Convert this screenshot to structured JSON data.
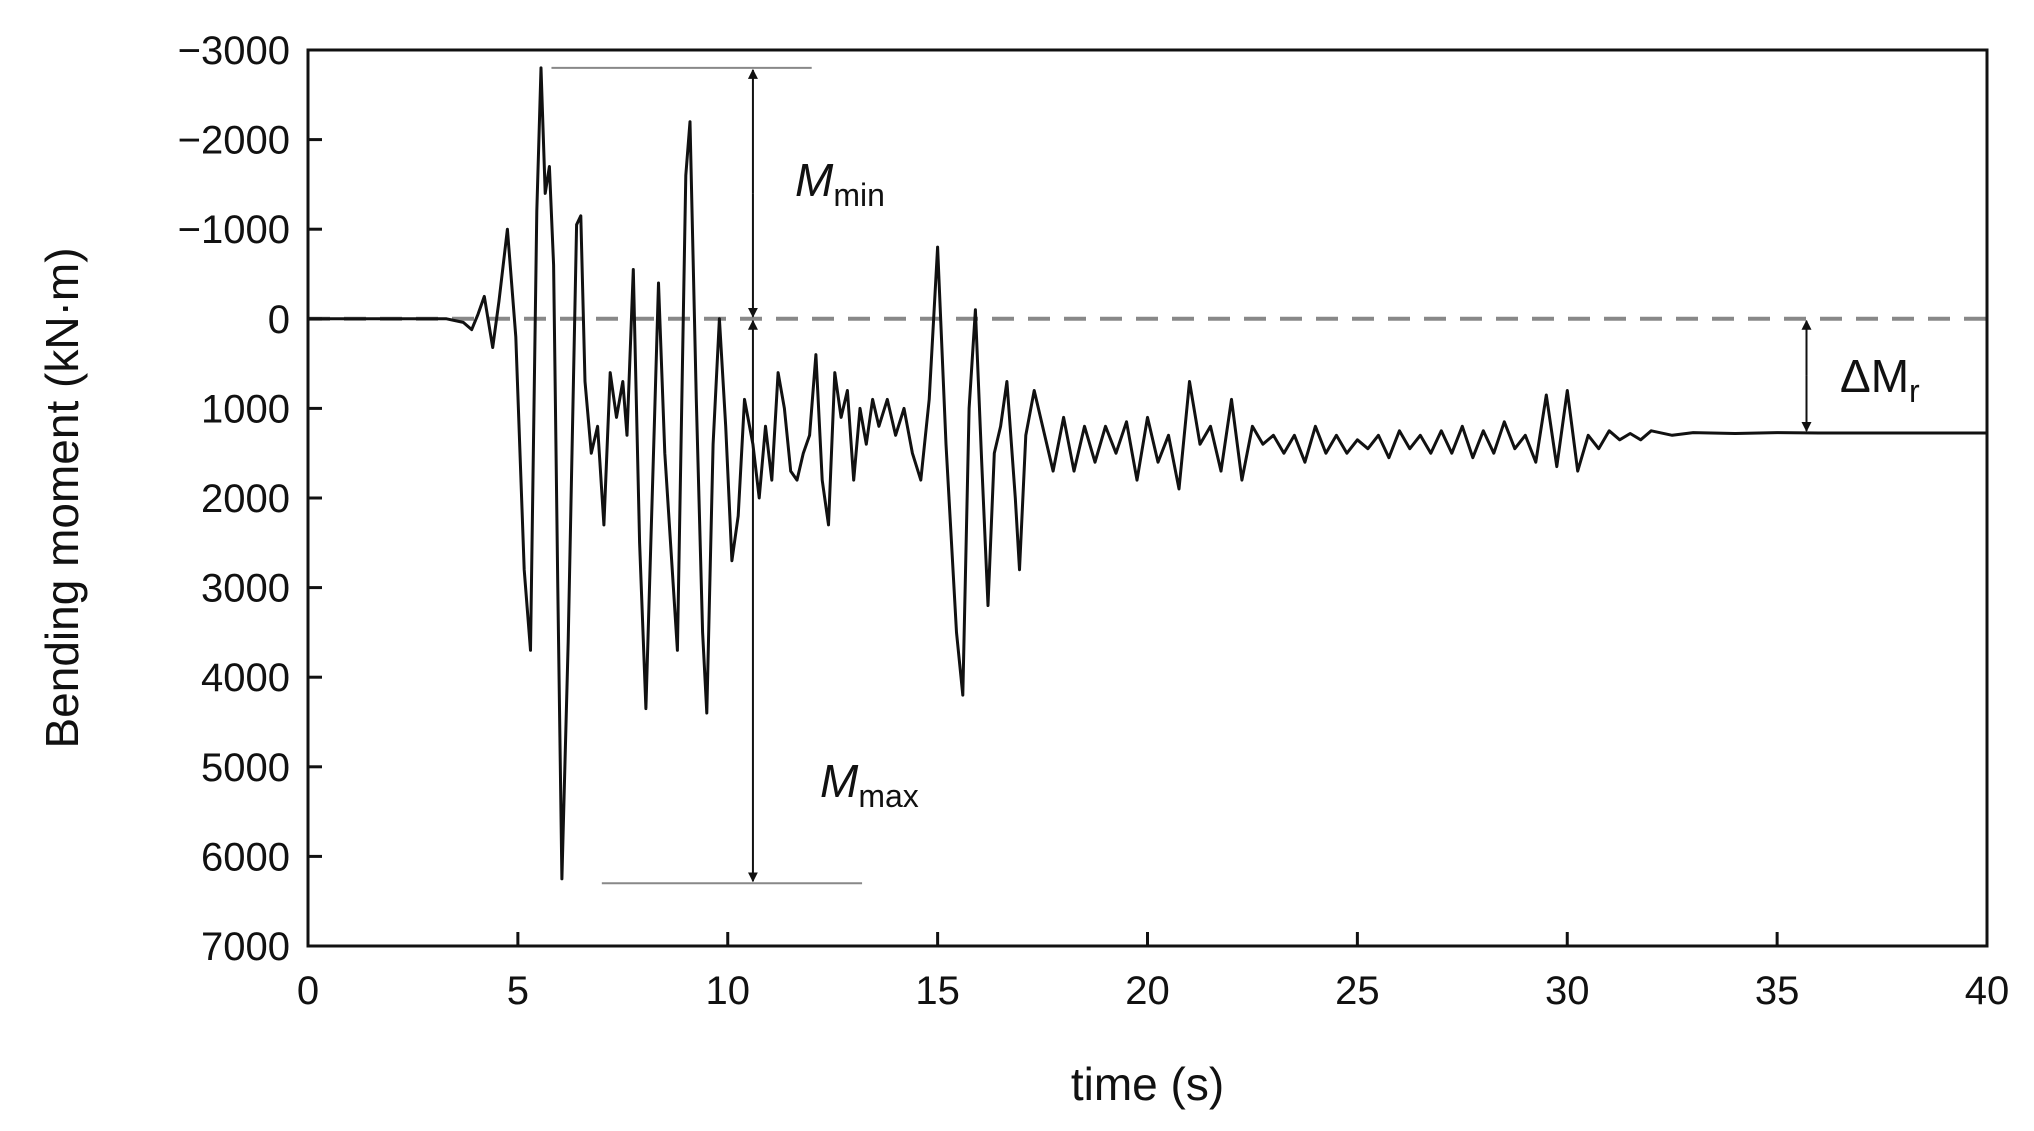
{
  "chart_data": {
    "type": "line",
    "title": "",
    "xlabel": "time (s)",
    "ylabel": "Bending moment (kN·m)",
    "xlim": [
      0,
      40
    ],
    "ylim": [
      -3000,
      7000
    ],
    "y_inverted": true,
    "x_ticks": [
      0,
      5,
      10,
      15,
      20,
      25,
      30,
      35,
      40
    ],
    "x_tick_labels": [
      "0",
      "5",
      "10",
      "15",
      "20",
      "25",
      "30",
      "35",
      "40"
    ],
    "y_ticks": [
      -3000,
      -2000,
      -1000,
      0,
      1000,
      2000,
      3000,
      4000,
      5000,
      6000,
      7000
    ],
    "y_tick_labels": [
      "−3000",
      "−2000",
      "−1000",
      "0",
      "1000",
      "2000",
      "3000",
      "4000",
      "5000",
      "6000",
      "7000"
    ],
    "grid": false,
    "reference_line": {
      "y": 0,
      "style": "dashed",
      "color": "#888888"
    },
    "series": [
      {
        "color": "#111111",
        "points": [
          [
            0,
            0
          ],
          [
            3.3,
            0
          ],
          [
            3.7,
            40
          ],
          [
            3.9,
            120
          ],
          [
            4.05,
            -50
          ],
          [
            4.2,
            -250
          ],
          [
            4.4,
            320
          ],
          [
            4.55,
            -200
          ],
          [
            4.75,
            -1000
          ],
          [
            4.95,
            200
          ],
          [
            5.15,
            2800
          ],
          [
            5.3,
            3700
          ],
          [
            5.45,
            -1200
          ],
          [
            5.55,
            -2800
          ],
          [
            5.65,
            -1400
          ],
          [
            5.75,
            -1700
          ],
          [
            5.85,
            -600
          ],
          [
            5.95,
            3000
          ],
          [
            6.05,
            6250
          ],
          [
            6.2,
            3600
          ],
          [
            6.4,
            -1050
          ],
          [
            6.5,
            -1150
          ],
          [
            6.6,
            700
          ],
          [
            6.75,
            1500
          ],
          [
            6.9,
            1200
          ],
          [
            7.05,
            2300
          ],
          [
            7.2,
            600
          ],
          [
            7.35,
            1100
          ],
          [
            7.5,
            700
          ],
          [
            7.6,
            1300
          ],
          [
            7.75,
            -550
          ],
          [
            7.9,
            2500
          ],
          [
            8.05,
            4350
          ],
          [
            8.25,
            1200
          ],
          [
            8.35,
            -400
          ],
          [
            8.5,
            1500
          ],
          [
            8.65,
            2600
          ],
          [
            8.8,
            3700
          ],
          [
            9.0,
            -1600
          ],
          [
            9.1,
            -2200
          ],
          [
            9.25,
            900
          ],
          [
            9.4,
            3500
          ],
          [
            9.5,
            4400
          ],
          [
            9.65,
            1400
          ],
          [
            9.8,
            0
          ],
          [
            9.95,
            1200
          ],
          [
            10.1,
            2700
          ],
          [
            10.25,
            2200
          ],
          [
            10.4,
            900
          ],
          [
            10.6,
            1400
          ],
          [
            10.75,
            2000
          ],
          [
            10.9,
            1200
          ],
          [
            11.05,
            1800
          ],
          [
            11.2,
            600
          ],
          [
            11.35,
            1000
          ],
          [
            11.5,
            1700
          ],
          [
            11.65,
            1800
          ],
          [
            11.8,
            1500
          ],
          [
            11.95,
            1300
          ],
          [
            12.1,
            400
          ],
          [
            12.25,
            1800
          ],
          [
            12.4,
            2300
          ],
          [
            12.55,
            600
          ],
          [
            12.7,
            1100
          ],
          [
            12.85,
            800
          ],
          [
            13.0,
            1800
          ],
          [
            13.15,
            1000
          ],
          [
            13.3,
            1400
          ],
          [
            13.45,
            900
          ],
          [
            13.6,
            1200
          ],
          [
            13.8,
            900
          ],
          [
            14.0,
            1300
          ],
          [
            14.2,
            1000
          ],
          [
            14.4,
            1500
          ],
          [
            14.6,
            1800
          ],
          [
            14.8,
            900
          ],
          [
            15.0,
            -800
          ],
          [
            15.2,
            1400
          ],
          [
            15.45,
            3500
          ],
          [
            15.6,
            4200
          ],
          [
            15.75,
            1000
          ],
          [
            15.9,
            -100
          ],
          [
            16.05,
            1600
          ],
          [
            16.2,
            3200
          ],
          [
            16.35,
            1500
          ],
          [
            16.5,
            1200
          ],
          [
            16.65,
            700
          ],
          [
            16.85,
            2000
          ],
          [
            16.95,
            2800
          ],
          [
            17.1,
            1300
          ],
          [
            17.3,
            800
          ],
          [
            17.5,
            1200
          ],
          [
            17.75,
            1700
          ],
          [
            18.0,
            1100
          ],
          [
            18.25,
            1700
          ],
          [
            18.5,
            1200
          ],
          [
            18.75,
            1600
          ],
          [
            19.0,
            1200
          ],
          [
            19.25,
            1500
          ],
          [
            19.5,
            1150
          ],
          [
            19.75,
            1800
          ],
          [
            20.0,
            1100
          ],
          [
            20.25,
            1600
          ],
          [
            20.5,
            1300
          ],
          [
            20.75,
            1900
          ],
          [
            21.0,
            700
          ],
          [
            21.25,
            1400
          ],
          [
            21.5,
            1200
          ],
          [
            21.75,
            1700
          ],
          [
            22.0,
            900
          ],
          [
            22.25,
            1800
          ],
          [
            22.5,
            1200
          ],
          [
            22.75,
            1400
          ],
          [
            23.0,
            1300
          ],
          [
            23.25,
            1500
          ],
          [
            23.5,
            1300
          ],
          [
            23.75,
            1600
          ],
          [
            24.0,
            1200
          ],
          [
            24.25,
            1500
          ],
          [
            24.5,
            1300
          ],
          [
            24.75,
            1500
          ],
          [
            25.0,
            1350
          ],
          [
            25.25,
            1450
          ],
          [
            25.5,
            1300
          ],
          [
            25.75,
            1550
          ],
          [
            26.0,
            1250
          ],
          [
            26.25,
            1450
          ],
          [
            26.5,
            1300
          ],
          [
            26.75,
            1500
          ],
          [
            27.0,
            1250
          ],
          [
            27.25,
            1500
          ],
          [
            27.5,
            1200
          ],
          [
            27.75,
            1550
          ],
          [
            28.0,
            1250
          ],
          [
            28.25,
            1500
          ],
          [
            28.5,
            1150
          ],
          [
            28.75,
            1450
          ],
          [
            29.0,
            1300
          ],
          [
            29.25,
            1600
          ],
          [
            29.5,
            850
          ],
          [
            29.75,
            1650
          ],
          [
            30.0,
            800
          ],
          [
            30.25,
            1700
          ],
          [
            30.5,
            1300
          ],
          [
            30.75,
            1450
          ],
          [
            31.0,
            1250
          ],
          [
            31.25,
            1350
          ],
          [
            31.5,
            1280
          ],
          [
            31.75,
            1350
          ],
          [
            32.0,
            1250
          ],
          [
            32.5,
            1300
          ],
          [
            33.0,
            1270
          ],
          [
            34.0,
            1280
          ],
          [
            35.0,
            1270
          ],
          [
            36.0,
            1275
          ],
          [
            38.0,
            1275
          ],
          [
            40.0,
            1275
          ]
        ]
      }
    ],
    "annotations": [
      {
        "label": "M",
        "subscript": "min"
      },
      {
        "label": "M",
        "subscript": "max"
      },
      {
        "label": "ΔM",
        "subscript": "r"
      }
    ]
  }
}
